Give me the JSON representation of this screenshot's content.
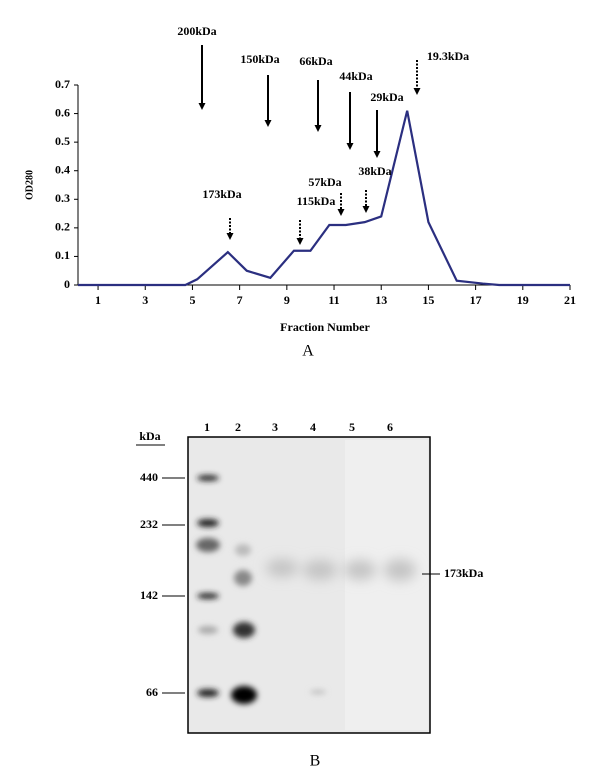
{
  "chart_data": {
    "type": "line",
    "ylabel": "OD280",
    "xlabel": "Fraction Number",
    "x": [
      0.15,
      4.7,
      5.2,
      6.5,
      7.3,
      8.3,
      9.3,
      10.0,
      10.8,
      11.5,
      12.3,
      13.0,
      14.1,
      15.0,
      16.2,
      17.3,
      18.0,
      21
    ],
    "values": [
      0,
      0,
      0.02,
      0.115,
      0.05,
      0.025,
      0.12,
      0.12,
      0.21,
      0.21,
      0.22,
      0.24,
      0.61,
      0.22,
      0.015,
      0.005,
      0,
      0
    ],
    "color": "#2b2f80",
    "xlim": [
      0.15,
      21
    ],
    "ylim": [
      0,
      0.7
    ],
    "xticks": [
      1,
      3,
      5,
      7,
      9,
      11,
      13,
      15,
      17,
      19,
      21
    ],
    "yticks": [
      0,
      0.1,
      0.2,
      0.3,
      0.4,
      0.5,
      0.6,
      0.7
    ],
    "annotations": [
      "200kDa",
      "150kDa",
      "66kDa",
      "44kDa",
      "29kDa",
      "19.3kDa",
      "173kDa",
      "115kDa",
      "57kDa",
      "38kDa"
    ],
    "panel_label": "A"
  },
  "panel_b": {
    "unit": "kDa",
    "lanes": [
      "1",
      "2",
      "3",
      "4",
      "5",
      "6"
    ],
    "markers": [
      "440",
      "232",
      "142",
      "66"
    ],
    "band_label": "173kDa",
    "panel_label": "B"
  }
}
